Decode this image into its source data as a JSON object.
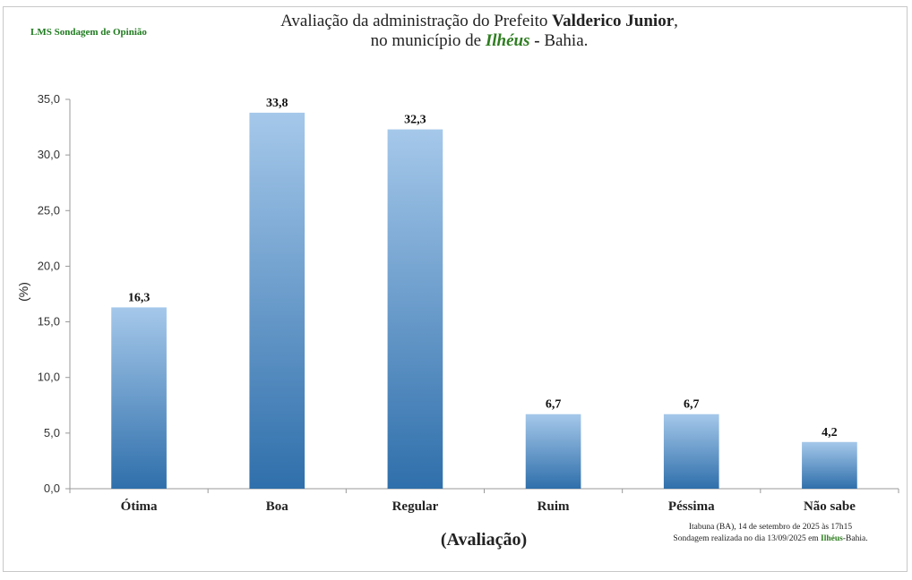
{
  "brand": "LMS Sondagem de Opinião",
  "title": {
    "line1_prefix": "Avaliação da administração do Prefeito",
    "line1_name": "Valderico Junior",
    "line1_suffix": ",",
    "line2_prefix": "no município de",
    "line2_city": "Ilhéus",
    "line2_dash": "-",
    "line2_suffix": "Bahia."
  },
  "note": {
    "line1": "Itabuna (BA), 14 de setembro de 2025 às 17h15",
    "line2_prefix": "Sondagem realizada no dia 13/09/2025 em",
    "line2_city": "Ilhéus",
    "line2_suffix": "-Bahia."
  },
  "chart_data": {
    "type": "bar",
    "categories": [
      "Ótima",
      "Boa",
      "Regular",
      "Ruim",
      "Péssima",
      "Não sabe"
    ],
    "values": [
      16.3,
      33.8,
      32.3,
      6.7,
      6.7,
      4.2
    ],
    "value_labels": [
      "16,3",
      "33,8",
      "32,3",
      "6,7",
      "6,7",
      "4,2"
    ],
    "xlabel": "(Avaliação)",
    "ylabel": "(%)",
    "ylim": [
      0,
      35
    ],
    "yticks": [
      0,
      5,
      10,
      15,
      20,
      25,
      30,
      35
    ],
    "ytick_labels": [
      "0,0",
      "5,0",
      "10,0",
      "15,0",
      "20,0",
      "25,0",
      "30,0",
      "35,0"
    ],
    "grid": false,
    "bar_color_top": "#a5c8ea",
    "bar_color_bottom": "#2f6fab"
  }
}
